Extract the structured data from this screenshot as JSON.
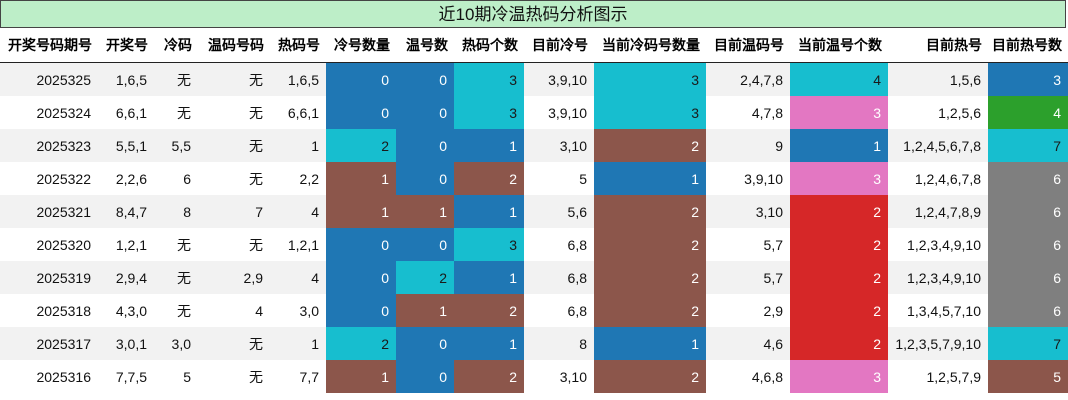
{
  "title": "近10期冷温热码分析图示",
  "colors": {
    "blue": "#1f77b4",
    "cyan": "#17becf",
    "brown": "#8c564b",
    "pink": "#e377c2",
    "red": "#d62728",
    "gray": "#7f7f7f",
    "green": "#2ca02c"
  },
  "headers": [
    "开奖号码期号",
    "开奖号",
    "冷码",
    "温码号码",
    "热码号",
    "冷号数量",
    "温号数",
    "热码个数",
    "目前冷号",
    "当前冷码号数量",
    "目前温码号",
    "当前温号个数",
    "目前热号",
    "目前热号数"
  ],
  "rows": [
    {
      "cells": [
        "2025325",
        "1,6,5",
        "无",
        "无",
        "1,6,5",
        "0",
        "0",
        "3",
        "3,9,10",
        "3",
        "2,4,7,8",
        "4",
        "1,5,6",
        "3"
      ]
    },
    {
      "cells": [
        "2025324",
        "6,6,1",
        "无",
        "无",
        "6,6,1",
        "0",
        "0",
        "3",
        "3,9,10",
        "3",
        "4,7,8",
        "3",
        "1,2,5,6",
        "4"
      ]
    },
    {
      "cells": [
        "2025323",
        "5,5,1",
        "5,5",
        "无",
        "1",
        "2",
        "0",
        "1",
        "3,10",
        "2",
        "9",
        "1",
        "1,2,4,5,6,7,8",
        "7"
      ]
    },
    {
      "cells": [
        "2025322",
        "2,2,6",
        "6",
        "无",
        "2,2",
        "1",
        "0",
        "2",
        "5",
        "1",
        "3,9,10",
        "3",
        "1,2,4,6,7,8",
        "6"
      ]
    },
    {
      "cells": [
        "2025321",
        "8,4,7",
        "8",
        "7",
        "4",
        "1",
        "1",
        "1",
        "5,6",
        "2",
        "3,10",
        "2",
        "1,2,4,7,8,9",
        "6"
      ]
    },
    {
      "cells": [
        "2025320",
        "1,2,1",
        "无",
        "无",
        "1,2,1",
        "0",
        "0",
        "3",
        "6,8",
        "2",
        "5,7",
        "2",
        "1,2,3,4,9,10",
        "6"
      ]
    },
    {
      "cells": [
        "2025319",
        "2,9,4",
        "无",
        "2,9",
        "4",
        "0",
        "2",
        "1",
        "6,8",
        "2",
        "5,7",
        "2",
        "1,2,3,4,9,10",
        "6"
      ]
    },
    {
      "cells": [
        "2025318",
        "4,3,0",
        "无",
        "4",
        "3,0",
        "0",
        "1",
        "2",
        "6,8",
        "2",
        "2,9",
        "2",
        "1,3,4,5,7,10",
        "6"
      ]
    },
    {
      "cells": [
        "2025317",
        "3,0,1",
        "3,0",
        "无",
        "1",
        "2",
        "0",
        "1",
        "8",
        "1",
        "4,6",
        "2",
        "1,2,3,5,7,9,10",
        "7"
      ]
    },
    {
      "cells": [
        "2025316",
        "7,7,5",
        "5",
        "无",
        "7,7",
        "1",
        "0",
        "2",
        "3,10",
        "2",
        "4,6,8",
        "3",
        "1,2,5,7,9",
        "5"
      ]
    }
  ]
}
